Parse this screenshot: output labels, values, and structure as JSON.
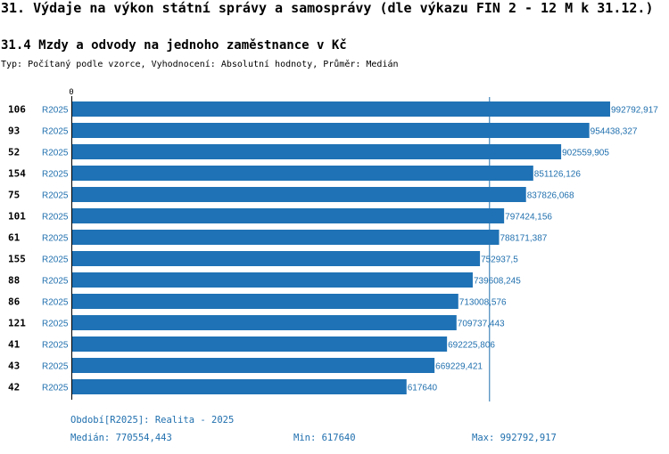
{
  "header": {
    "title": "31. Výdaje na výkon státní správy a samosprávy (dle výkazu FIN 2 - 12 M k 31.12.)",
    "subtitle": "31.4 Mzdy a odvody na jednoho zaměstnance v Kč",
    "typ": "Typ: Počítaný podle vzorce, Vyhodnocení: Absolutní hodnoty, Průměr: Medián"
  },
  "colors": {
    "bar": "#1f72b5",
    "value_text": "#1f6fae",
    "median_line": "#1f6fae",
    "axis": "#000000"
  },
  "chart_data": {
    "type": "bar",
    "orientation": "horizontal",
    "axis_zero_label": "0",
    "xlim": [
      0,
      992792.917
    ],
    "median": 770554.443,
    "categories": [
      "106",
      "93",
      "52",
      "154",
      "75",
      "101",
      "61",
      "155",
      "88",
      "86",
      "121",
      "41",
      "43",
      "42"
    ],
    "series_labels": [
      "R2025",
      "R2025",
      "R2025",
      "R2025",
      "R2025",
      "R2025",
      "R2025",
      "R2025",
      "R2025",
      "R2025",
      "R2025",
      "R2025",
      "R2025",
      "R2025"
    ],
    "values": [
      992792.917,
      954438.327,
      902559.905,
      851126.126,
      837826.068,
      797424.156,
      788171.387,
      752937.5,
      739608.245,
      713008.576,
      709737.443,
      692225.806,
      669229.421,
      617640
    ],
    "value_labels": [
      "992792,917",
      "954438,327",
      "902559,905",
      "851126,126",
      "837826,068",
      "797424,156",
      "788171,387",
      "752937,5",
      "739608,245",
      "713008,576",
      "709737,443",
      "692225,806",
      "669229,421",
      "617640"
    ]
  },
  "footer": {
    "period": "Období[R2025]: Realita - 2025",
    "median": "Medián: 770554,443",
    "min": "Min: 617640",
    "max": "Max: 992792,917"
  }
}
